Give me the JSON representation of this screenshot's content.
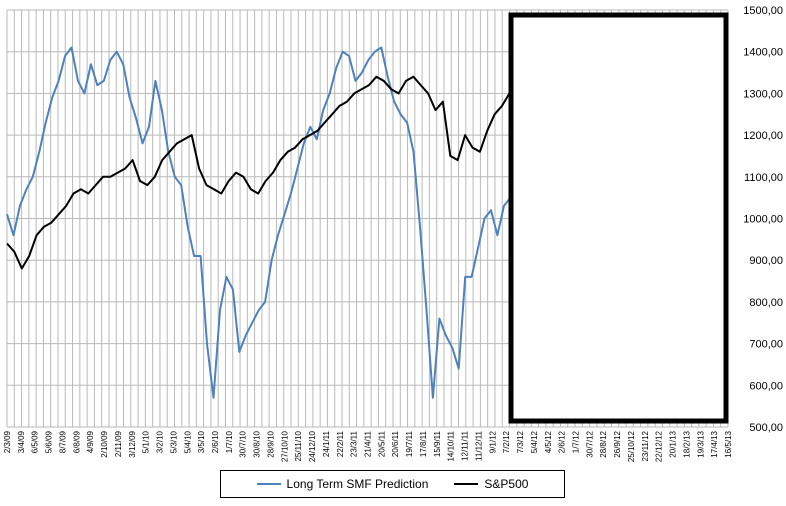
{
  "chart_data": {
    "type": "line",
    "title": "",
    "xlabel": "",
    "ylabel": "",
    "ylim": [
      500,
      1500
    ],
    "y_ticks": [
      "500,00",
      "600,00",
      "700,00",
      "800,00",
      "900,00",
      "1000,00",
      "1100,00",
      "1200,00",
      "1300,00",
      "1400,00",
      "1500,00"
    ],
    "x_tick_labels": [
      "2/3/09",
      "3/4/09",
      "6/5/09",
      "5/6/09",
      "8/7/09",
      "6/8/09",
      "4/9/09",
      "2/10/09",
      "2/11/09",
      "3/12/09",
      "5/1/10",
      "3/2/10",
      "5/3/10",
      "5/4/10",
      "3/5/10",
      "2/6/10",
      "1/7/10",
      "30/7/10",
      "30/8/10",
      "28/9/10",
      "27/10/10",
      "25/11/10",
      "24/12/10",
      "24/1/11",
      "22/2/11",
      "23/3/11",
      "21/4/11",
      "20/5/11",
      "20/6/11",
      "19/7/11",
      "17/8/11",
      "15/9/11",
      "14/10/11",
      "12/11/11",
      "11/12/11",
      "9/1/12",
      "7/2/12",
      "7/3/12",
      "5/4/12",
      "4/5/12",
      "2/6/12",
      "1/7/12",
      "30/7/12",
      "28/8/12",
      "26/9/12",
      "25/10/12",
      "23/11/12",
      "22/12/12",
      "20/1/13",
      "18/2/13",
      "19/3/13",
      "17/4/13",
      "16/5/13"
    ],
    "x_count": 100,
    "forecast_start_index": 70,
    "legend_position": "bottom",
    "grid": true,
    "series": [
      {
        "name": "Long Term SMF Prediction",
        "color": "#4f81bd",
        "values": [
          1010,
          960,
          1030,
          1070,
          1100,
          1160,
          1230,
          1290,
          1330,
          1390,
          1410,
          1330,
          1300,
          1370,
          1320,
          1330,
          1380,
          1400,
          1370,
          1290,
          1240,
          1180,
          1220,
          1330,
          1260,
          1160,
          1100,
          1080,
          980,
          910,
          910,
          700,
          570,
          780,
          860,
          830,
          680,
          720,
          750,
          780,
          800,
          900,
          960,
          1010,
          1060,
          1120,
          1180,
          1220,
          1190,
          1260,
          1300,
          1360,
          1400,
          1390,
          1330,
          1350,
          1380,
          1400,
          1410,
          1340,
          1280,
          1250,
          1230,
          1160,
          980,
          780,
          570,
          760,
          720,
          690,
          640,
          860,
          860,
          930,
          1000,
          1020,
          960,
          1030,
          1050,
          1040
        ],
        "x_start": 0
      },
      {
        "name": "S&P500",
        "color": "#000000",
        "values": [
          940,
          920,
          880,
          910,
          960,
          980,
          990,
          1010,
          1030,
          1060,
          1070,
          1060,
          1080,
          1100,
          1100,
          1110,
          1120,
          1140,
          1090,
          1080,
          1100,
          1140,
          1160,
          1180,
          1190,
          1200,
          1120,
          1080,
          1070,
          1060,
          1090,
          1110,
          1100,
          1070,
          1060,
          1090,
          1110,
          1140,
          1160,
          1170,
          1190,
          1200,
          1210,
          1230,
          1250,
          1270,
          1280,
          1300,
          1310,
          1320,
          1340,
          1330,
          1310,
          1300,
          1330,
          1340,
          1320,
          1300,
          1260,
          1280,
          1150,
          1140,
          1200,
          1170,
          1160,
          1210,
          1250,
          1270,
          1300,
          1350
        ],
        "x_start": 0
      }
    ]
  }
}
